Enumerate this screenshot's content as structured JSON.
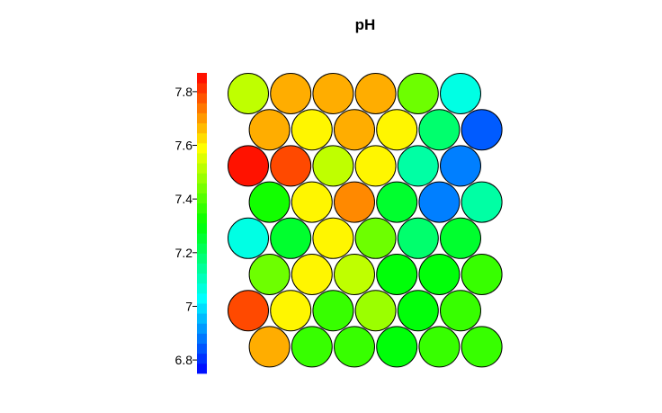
{
  "chart_data": {
    "type": "heatmap",
    "subtype": "som-hexagonal-grid",
    "title": "pH",
    "colormap": [
      "#0000ff",
      "#00ffff",
      "#00ff00",
      "#ffff00",
      "#ff0000"
    ],
    "color_range": [
      6.75,
      7.87
    ],
    "colorbar_ticks": [
      {
        "value": 6.8,
        "label": "6.8"
      },
      {
        "value": 7.0,
        "label": "7"
      },
      {
        "value": 7.2,
        "label": "7.2"
      },
      {
        "value": 7.4,
        "label": "7.4"
      },
      {
        "value": 7.6,
        "label": "7.6"
      },
      {
        "value": 7.8,
        "label": "7.8"
      }
    ],
    "grid_rows": [
      [
        7.52,
        7.68,
        7.68,
        7.68,
        7.43,
        7.06
      ],
      [
        7.68,
        7.6,
        7.68,
        7.6,
        7.19,
        6.85
      ],
      [
        7.85,
        7.79,
        7.52,
        7.6,
        7.13,
        6.89
      ],
      [
        7.33,
        7.6,
        7.72,
        7.26,
        6.89,
        7.13
      ],
      [
        7.06,
        7.26,
        7.6,
        7.43,
        7.19,
        7.26
      ],
      [
        7.43,
        7.6,
        7.52,
        7.3,
        7.3,
        7.37
      ],
      [
        7.79,
        7.6,
        7.37,
        7.48,
        7.3,
        7.37
      ],
      [
        7.68,
        7.37,
        7.37,
        7.3,
        7.37,
        7.37
      ]
    ]
  }
}
